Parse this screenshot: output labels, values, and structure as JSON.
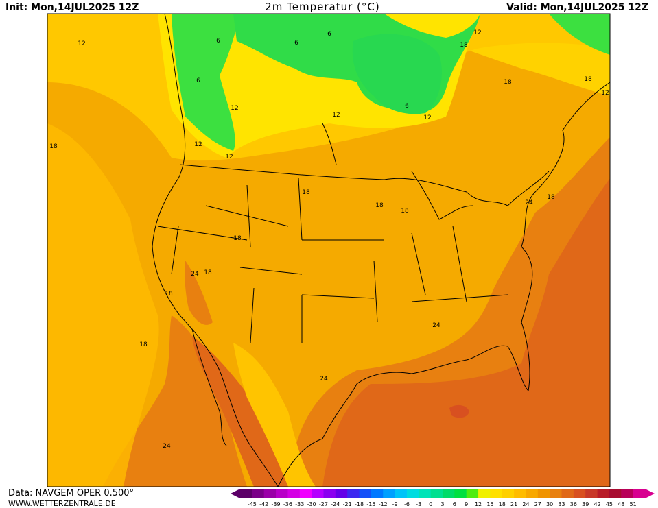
{
  "header": {
    "init": "Init: Mon,14JUL2025 12Z",
    "title": "2m Temperatur (°C)",
    "valid": "Valid: Mon,14JUL2025 12Z"
  },
  "map": {
    "contour_labels": [
      12,
      6,
      6,
      6,
      6,
      12,
      12,
      6,
      12,
      18,
      12,
      18,
      18,
      12,
      18,
      12,
      12,
      18,
      18,
      18,
      24,
      18,
      18,
      24,
      18,
      18,
      18,
      24,
      24,
      24
    ]
  },
  "footer": {
    "data_source": "Data: NAVGEM OPER 0.500°",
    "website": "WWW.WETTERZENTRALE.DE"
  },
  "legend": {
    "labels": [
      -45,
      -42,
      -39,
      -36,
      -33,
      -30,
      -27,
      -24,
      -21,
      -18,
      -15,
      -12,
      -9,
      -6,
      -3,
      0,
      3,
      6,
      9,
      12,
      15,
      18,
      21,
      24,
      27,
      30,
      33,
      36,
      39,
      42,
      45,
      48,
      51
    ],
    "colors": [
      "#5c0068",
      "#7a0088",
      "#9a00a8",
      "#b800c8",
      "#d400e4",
      "#f000ff",
      "#b400ff",
      "#8a00f0",
      "#6400e8",
      "#3c28f0",
      "#1450f8",
      "#0078ff",
      "#00a0ff",
      "#00c4f8",
      "#00dce0",
      "#00e4b8",
      "#00e090",
      "#00dc68",
      "#00e040",
      "#50ec10",
      "#f0f000",
      "#ffe000",
      "#ffd000",
      "#ffbc00",
      "#f8a800",
      "#f09400",
      "#e88010",
      "#e06818",
      "#d85020",
      "#c83828",
      "#b81c28",
      "#a80c30",
      "#b80058",
      "#d80090"
    ]
  }
}
